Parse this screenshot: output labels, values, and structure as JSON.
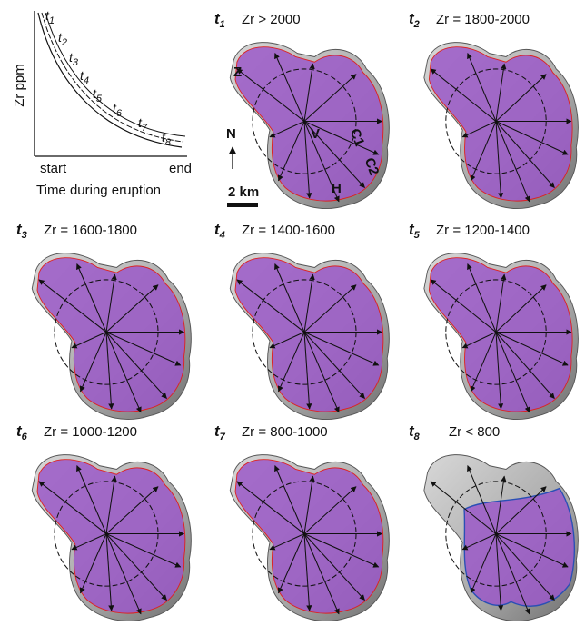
{
  "plot": {
    "y_label": "Zr ppm",
    "x_label": "Time during eruption",
    "start": "start",
    "end": "end",
    "curves": [
      {
        "t": "t",
        "i": "1"
      },
      {
        "t": "t",
        "i": "2"
      },
      {
        "t": "t",
        "i": "3"
      },
      {
        "t": "t",
        "i": "4"
      },
      {
        "t": "t",
        "i": "5"
      },
      {
        "t": "t",
        "i": "6"
      },
      {
        "t": "t",
        "i": "7"
      },
      {
        "t": "t",
        "i": "8"
      }
    ]
  },
  "panels": [
    {
      "t": "t",
      "i": "1",
      "title": "Zr > 2000"
    },
    {
      "t": "t",
      "i": "2",
      "title": "Zr = 1800-2000"
    },
    {
      "t": "t",
      "i": "3",
      "title": "Zr = 1600-1800"
    },
    {
      "t": "t",
      "i": "4",
      "title": "Zr = 1400-1600"
    },
    {
      "t": "t",
      "i": "5",
      "title": "Zr = 1200-1400"
    },
    {
      "t": "t",
      "i": "6",
      "title": "Zr = 1000-1200"
    },
    {
      "t": "t",
      "i": "7",
      "title": "Zr = 800-1000"
    },
    {
      "t": "t",
      "i": "8",
      "title": "Zr < 800"
    }
  ],
  "map_labels": {
    "z": "Z",
    "v": "V",
    "c1": "C1",
    "c2": "C2",
    "h": "H",
    "north": "N",
    "scale": "2 km"
  }
}
